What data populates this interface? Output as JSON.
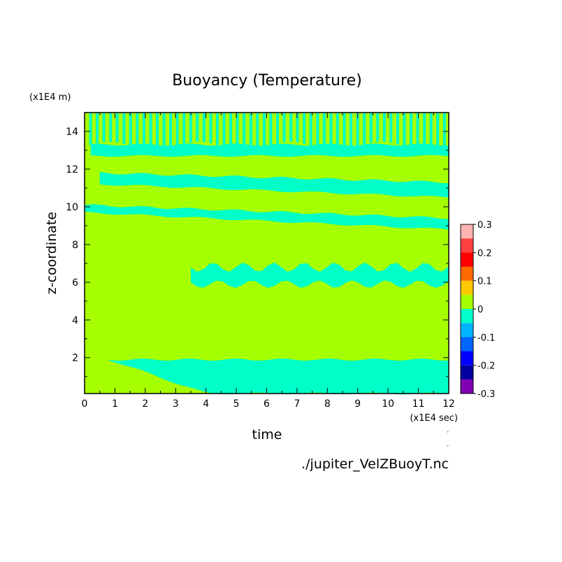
{
  "chart_data": {
    "type": "heatmap",
    "title": "Buoyancy (Temperature)",
    "xlabel": "time",
    "ylabel": "z-coordinate",
    "x_unit": "(x1E4 sec)",
    "y_unit": "(x1E4 m)",
    "xlim": [
      0,
      12
    ],
    "ylim": [
      0.1,
      15
    ],
    "x_ticks": [
      "0",
      "1",
      "2",
      "3",
      "4",
      "5",
      "6",
      "7",
      "8",
      "9",
      "10",
      "11",
      "12"
    ],
    "y_ticks": [
      "2",
      "4",
      "6",
      "8",
      "10",
      "12",
      "14"
    ],
    "background_level": "0",
    "background_color": "#a6ff00",
    "colorbar": {
      "ticks": [
        "0.3",
        "0.2",
        "0.1",
        "0",
        "-0.1",
        "-0.2",
        "-0.3"
      ],
      "levels": [
        {
          "range": [
            0.25,
            0.3
          ],
          "color": "#ffb3b3"
        },
        {
          "range": [
            0.2,
            0.25
          ],
          "color": "#ff4040"
        },
        {
          "range": [
            0.15,
            0.2
          ],
          "color": "#ff0000"
        },
        {
          "range": [
            0.1,
            0.15
          ],
          "color": "#ff6a00"
        },
        {
          "range": [
            0.05,
            0.1
          ],
          "color": "#ffc800"
        },
        {
          "range": [
            0.0,
            0.05
          ],
          "color": "#a6ff00"
        },
        {
          "range": [
            -0.05,
            0.0
          ],
          "color": "#00ffc8"
        },
        {
          "range": [
            -0.1,
            -0.05
          ],
          "color": "#00b4ff"
        },
        {
          "range": [
            -0.15,
            -0.1
          ],
          "color": "#0064ff"
        },
        {
          "range": [
            -0.2,
            -0.15
          ],
          "color": "#0000ff"
        },
        {
          "range": [
            -0.25,
            -0.2
          ],
          "color": "#0000a0"
        },
        {
          "range": [
            -0.3,
            -0.25
          ],
          "color": "#8000b4"
        }
      ]
    },
    "negative_regions": [
      {
        "name": "upper-layer",
        "x0": 0.2,
        "x1": 12,
        "z_bottom": 12.7,
        "z_top": 13.3
      },
      {
        "name": "layer-11",
        "x0": 0.5,
        "x1": 12,
        "z_bottom_start": 11.2,
        "z_bottom_end": 10.5,
        "z_top_start": 11.8,
        "z_top_end": 11.3
      },
      {
        "name": "layer-9",
        "x0": 0.0,
        "x1": 12,
        "z_bottom_start": 9.7,
        "z_bottom_end": 8.8,
        "z_top_start": 10.1,
        "z_top_end": 9.4
      },
      {
        "name": "layer-6",
        "x0": 3.5,
        "x1": 12,
        "z_bottom": 5.9,
        "z_top": 6.8
      },
      {
        "name": "layer-1",
        "x0": 0.8,
        "x1": 12,
        "z_bottom": 0.1,
        "z_top": 1.9
      }
    ],
    "annotation": "./jupiter_VelZBuoyT.nc"
  }
}
